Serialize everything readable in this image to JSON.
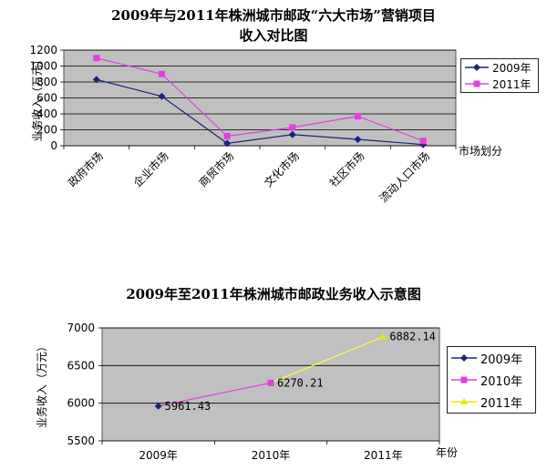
{
  "chart_data": [
    {
      "type": "line",
      "title": "2009年与2011年株洲城市邮政“六大市场”营销项目",
      "title_line2": "收入对比图",
      "xlabel": "市场划分",
      "ylabel": "业务收入（万元）",
      "categories": [
        "政府市场",
        "企业市场",
        "商贸市场",
        "文化市场",
        "社区市场",
        "流动人口市场"
      ],
      "ylim": [
        0,
        1200
      ],
      "yticks": [
        "0",
        "200",
        "400",
        "600",
        "800",
        "1000",
        "1200"
      ],
      "grid": true,
      "legend": "right",
      "series": [
        {
          "name": "2009年",
          "color": "#1a237e",
          "marker": "diamond",
          "values": [
            830,
            620,
            30,
            140,
            80,
            15
          ]
        },
        {
          "name": "2011年",
          "color": "#e040e0",
          "marker": "square",
          "values": [
            1100,
            900,
            120,
            230,
            370,
            60
          ]
        }
      ]
    },
    {
      "type": "line",
      "title": "2009年至2011年株洲城市邮政业务收入示意图",
      "xlabel": "年份",
      "ylabel": "业务收入（万元）",
      "categories": [
        "2009年",
        "2010年",
        "2011年"
      ],
      "ylim": [
        5500,
        7000
      ],
      "yticks": [
        "5500",
        "6000",
        "6500",
        "7000"
      ],
      "grid": true,
      "legend": "right",
      "values": [
        5961.43,
        6270.21,
        6882.14
      ],
      "data_labels": [
        "5961.43",
        "6270.21",
        "6882.14"
      ],
      "segment_colors": [
        "#e040e0",
        "#ffff33"
      ],
      "legend_entries": [
        {
          "name": "2009年",
          "color": "#1a237e",
          "marker": "diamond"
        },
        {
          "name": "2010年",
          "color": "#e040e0",
          "marker": "square"
        },
        {
          "name": "2011年",
          "color": "#e8e800",
          "marker": "triangle"
        }
      ]
    }
  ]
}
